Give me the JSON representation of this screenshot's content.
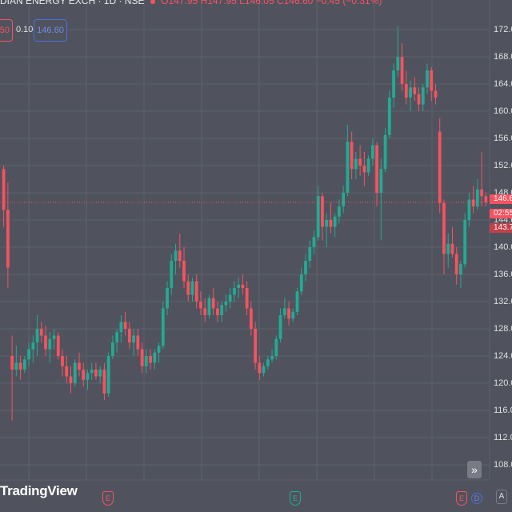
{
  "header": {
    "symbol_line": "DIAN ENERGY EXCH · 1D · NSE",
    "ohlc": "O147.95 H147.95 L146.05 C146.60 −0.45 (−0.31%)"
  },
  "trade": {
    "sell_price": "50",
    "spread": "0.10",
    "buy_price": "146.60"
  },
  "price_axis": {
    "labels": [
      "172.0",
      "168.0",
      "164.0",
      "160.0",
      "156.0",
      "152.0",
      "148.0",
      "144.0",
      "140.0",
      "136.0",
      "132.0",
      "128.0",
      "124.0",
      "120.0",
      "116.0",
      "112.0",
      "108.0"
    ],
    "last_price_tag": "146.6",
    "countdown_tag": "02:55",
    "prev_tag": "143.7"
  },
  "watermark": "TradingView",
  "events": [
    {
      "type": "earnings",
      "label": "E"
    },
    {
      "type": "earnings",
      "label": "E"
    },
    {
      "type": "earnings",
      "label": "E"
    },
    {
      "type": "dividend",
      "label": "D"
    }
  ],
  "controls": {
    "scroll_right_icon": "»",
    "auto_scale": "A"
  },
  "colors": {
    "background": "#50535e",
    "up": "#22ab94",
    "down": "#f7525f",
    "grid": "#5d606b",
    "price_line": "#f7525f"
  },
  "chart_data": {
    "type": "candlestick",
    "ylim": [
      106,
      174
    ],
    "current_price": 146.6,
    "candles": [
      [
        151.5,
        152,
        143,
        145.5
      ],
      [
        145.5,
        149.5,
        134,
        137
      ],
      [
        124,
        127,
        114.5,
        122
      ],
      [
        122,
        125.5,
        121,
        123
      ],
      [
        123,
        124,
        120.5,
        122
      ],
      [
        122,
        124,
        121.5,
        123.5
      ],
      [
        123.5,
        126,
        122.5,
        125
      ],
      [
        125,
        127,
        123,
        126
      ],
      [
        126,
        130,
        124,
        128
      ],
      [
        128,
        129,
        126,
        127
      ],
      [
        127,
        128.5,
        124,
        125
      ],
      [
        125,
        127.5,
        123,
        126.5
      ],
      [
        126.5,
        128,
        125,
        127
      ],
      [
        127,
        127.5,
        123.5,
        124
      ],
      [
        124,
        125,
        121,
        122.5
      ],
      [
        122.5,
        124,
        120,
        121
      ],
      [
        121,
        122.5,
        118.5,
        120
      ],
      [
        120,
        123.5,
        119.5,
        123
      ],
      [
        123,
        124.5,
        121,
        122
      ],
      [
        122,
        123,
        119.5,
        120.5
      ],
      [
        120.5,
        122,
        119,
        121.5
      ],
      [
        121.5,
        123,
        120.5,
        122
      ],
      [
        122,
        123,
        120.5,
        121
      ],
      [
        121,
        122.5,
        120,
        122
      ],
      [
        122,
        123,
        117.5,
        118.5
      ],
      [
        118.5,
        124.5,
        118,
        124
      ],
      [
        124,
        127,
        123.5,
        126
      ],
      [
        126,
        128,
        124.5,
        127.5
      ],
      [
        127.5,
        130,
        126,
        129
      ],
      [
        129,
        130.5,
        127,
        128
      ],
      [
        128,
        129,
        125,
        126
      ],
      [
        126,
        128,
        124,
        127
      ],
      [
        127,
        128,
        124,
        125
      ],
      [
        125,
        126,
        121.5,
        122.5
      ],
      [
        122.5,
        125,
        121.5,
        124
      ],
      [
        124,
        125,
        122,
        123
      ],
      [
        123,
        125,
        122,
        124.5
      ],
      [
        124.5,
        126,
        123,
        125.5
      ],
      [
        125.5,
        132,
        125,
        131
      ],
      [
        131,
        135,
        130,
        134
      ],
      [
        134,
        139,
        133,
        138
      ],
      [
        138,
        140.5,
        136,
        139.5
      ],
      [
        139.5,
        142,
        137,
        138
      ],
      [
        138,
        140,
        134,
        135
      ],
      [
        135,
        136,
        132,
        133
      ],
      [
        133,
        135.5,
        132,
        135
      ],
      [
        135,
        136,
        131,
        132
      ],
      [
        132,
        133.5,
        130,
        131
      ],
      [
        131,
        132.5,
        129,
        130
      ],
      [
        130,
        133,
        129.5,
        132.5
      ],
      [
        132.5,
        134,
        130,
        131
      ],
      [
        131,
        132,
        129,
        130
      ],
      [
        130,
        132,
        129,
        131.5
      ],
      [
        131.5,
        133,
        130.5,
        132
      ],
      [
        132,
        134,
        131,
        133
      ],
      [
        133,
        135,
        132,
        134
      ],
      [
        134,
        135.5,
        132.5,
        134.5
      ],
      [
        134.5,
        136,
        133,
        134
      ],
      [
        134,
        135,
        130,
        131
      ],
      [
        131,
        132,
        127,
        128
      ],
      [
        128,
        129,
        122,
        123
      ],
      [
        123,
        124,
        120.5,
        121.5
      ],
      [
        121.5,
        123,
        121,
        122.5
      ],
      [
        122.5,
        124,
        122,
        123.5
      ],
      [
        123.5,
        125,
        123,
        124
      ],
      [
        124,
        127,
        123.5,
        126.5
      ],
      [
        126.5,
        131,
        126,
        130
      ],
      [
        130,
        132.5,
        129.5,
        131
      ],
      [
        131,
        132,
        128.5,
        129.5
      ],
      [
        129.5,
        131,
        129,
        130.5
      ],
      [
        130.5,
        134,
        130,
        133.5
      ],
      [
        133.5,
        137,
        133,
        136
      ],
      [
        136,
        139,
        135,
        138
      ],
      [
        138,
        141,
        137,
        140
      ],
      [
        140,
        142.5,
        139,
        141.5
      ],
      [
        141.5,
        149,
        141,
        147.5
      ],
      [
        147.5,
        148,
        141,
        143
      ],
      [
        143,
        145,
        140,
        144
      ],
      [
        144,
        146.5,
        142,
        143
      ],
      [
        143,
        145,
        141.5,
        144.5
      ],
      [
        144.5,
        147,
        143.5,
        146
      ],
      [
        146,
        149,
        145,
        148
      ],
      [
        148,
        158,
        147.5,
        155.5
      ],
      [
        155.5,
        157,
        150,
        151.5
      ],
      [
        151.5,
        154,
        150,
        153
      ],
      [
        153,
        155,
        150.5,
        152
      ],
      [
        152,
        154,
        149,
        151
      ],
      [
        151,
        153.5,
        150.5,
        153
      ],
      [
        153,
        156,
        152,
        155
      ],
      [
        155,
        155.5,
        146,
        148
      ],
      [
        148,
        153,
        141,
        151.5
      ],
      [
        151.5,
        157.5,
        151,
        156.5
      ],
      [
        156.5,
        163,
        156,
        162
      ],
      [
        162,
        167,
        160.5,
        166
      ],
      [
        166,
        172.5,
        165,
        168
      ],
      [
        168,
        170,
        163,
        164
      ],
      [
        164,
        166,
        161,
        162
      ],
      [
        162,
        164.5,
        160,
        163.5
      ],
      [
        163.5,
        165,
        161.5,
        162.5
      ],
      [
        162.5,
        163.5,
        160,
        161
      ],
      [
        161,
        164,
        160,
        163.5
      ],
      [
        163.5,
        167,
        162.5,
        166
      ],
      [
        166,
        166.5,
        161.5,
        163
      ],
      [
        163,
        164,
        161,
        162
      ],
      [
        157,
        159,
        145,
        146.5
      ],
      [
        146.5,
        147,
        136,
        139
      ],
      [
        139,
        142,
        137,
        140.5
      ],
      [
        140.5,
        143,
        138.5,
        139
      ],
      [
        139,
        140,
        134.5,
        136
      ],
      [
        136,
        138,
        134,
        137.5
      ],
      [
        137.5,
        145,
        137,
        144
      ],
      [
        144,
        148,
        143,
        147
      ],
      [
        147,
        149,
        145,
        146
      ],
      [
        146,
        150,
        145.5,
        148.5
      ],
      [
        148.5,
        154,
        146,
        147.5
      ],
      [
        147.5,
        148,
        146,
        146.6
      ]
    ]
  }
}
